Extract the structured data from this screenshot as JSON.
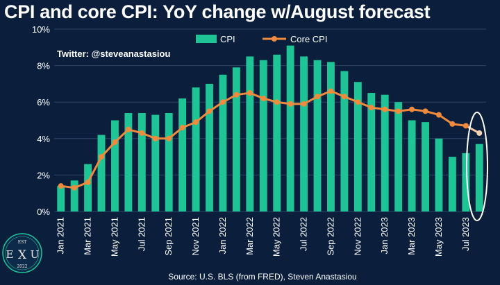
{
  "chart_data": {
    "type": "bar",
    "title": "CPI and core CPI: YoY change w/August forecast",
    "categories": [
      "Jan 2021",
      "Feb 2021",
      "Mar 2021",
      "Apr 2021",
      "May 2021",
      "Jun 2021",
      "Jul 2021",
      "Aug 2021",
      "Sep 2021",
      "Oct 2021",
      "Nov 2021",
      "Dec 2021",
      "Jan 2022",
      "Feb 2022",
      "Mar 2022",
      "Apr 2022",
      "May 2022",
      "Jun 2022",
      "Jul 2022",
      "Aug 2022",
      "Sep 2022",
      "Oct 2022",
      "Nov 2022",
      "Dec 2022",
      "Jan 2023",
      "Feb 2023",
      "Mar 2023",
      "Apr 2023",
      "May 2023",
      "Jun 2023",
      "Jul 2023",
      "Aug 2023"
    ],
    "x_tick_labels": [
      "Jan 2021",
      "",
      "Mar 2021",
      "",
      "May 2021",
      "",
      "Jul 2021",
      "",
      "Sep 2021",
      "",
      "Nov 2021",
      "",
      "Jan 2022",
      "",
      "Mar 2022",
      "",
      "May 2022",
      "",
      "Jul 2022",
      "",
      "Sep 2022",
      "",
      "Nov 2022",
      "",
      "Jan 2023",
      "",
      "Mar 2023",
      "",
      "May 2023",
      "",
      "Jul 2023",
      ""
    ],
    "series": [
      {
        "name": "CPI",
        "kind": "bar",
        "color": "#1fc496",
        "values": [
          1.4,
          1.7,
          2.6,
          4.2,
          5.0,
          5.4,
          5.4,
          5.3,
          5.4,
          6.2,
          6.8,
          7.0,
          7.5,
          7.9,
          8.5,
          8.3,
          8.6,
          9.1,
          8.5,
          8.3,
          8.2,
          7.7,
          7.1,
          6.5,
          6.4,
          6.0,
          5.0,
          4.9,
          4.0,
          3.0,
          3.2,
          3.7
        ]
      },
      {
        "name": "Core CPI",
        "kind": "line",
        "color": "#f08a3c",
        "values": [
          1.4,
          1.3,
          1.6,
          3.0,
          3.8,
          4.5,
          4.3,
          4.0,
          4.0,
          4.6,
          4.9,
          5.5,
          6.0,
          6.4,
          6.5,
          6.2,
          6.0,
          5.9,
          5.9,
          6.3,
          6.6,
          6.3,
          6.0,
          5.7,
          5.6,
          5.5,
          5.6,
          5.5,
          5.3,
          4.8,
          4.7,
          4.3
        ]
      }
    ],
    "y_ticks": [
      "0%",
      "2%",
      "4%",
      "6%",
      "8%",
      "10%"
    ],
    "ylim": [
      0,
      10
    ],
    "grid": true,
    "legend_position": "top-center",
    "highlight": "Aug 2023 forecast circled",
    "annotation": "Twitter: @steveanastasiou",
    "source": "Source: U.S. BLS (from FRED), Steven Anastasiou"
  },
  "logo": {
    "top": "EST",
    "left": "E",
    "mid": "X",
    "right": "U",
    "bottom": "2022"
  },
  "colors": {
    "background": "#0b1f3d",
    "bar": "#1fc496",
    "line": "#f08a3c",
    "grid": "#2e4466"
  }
}
